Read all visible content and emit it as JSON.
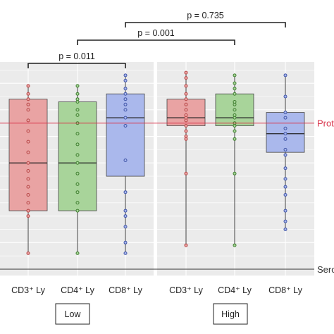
{
  "chart_data": {
    "type": "box",
    "panels": [
      {
        "group": "Low",
        "series": [
          {
            "name": "CD3⁺ Ly",
            "color": "#e9a3a3",
            "edge": "#c05050",
            "dot": "#b84747",
            "min": 0.06,
            "q1": 0.22,
            "median": 0.4,
            "q3": 0.64,
            "max": 0.69,
            "points": [
              0.06,
              0.2,
              0.22,
              0.22,
              0.25,
              0.28,
              0.31,
              0.34,
              0.37,
              0.4,
              0.44,
              0.48,
              0.52,
              0.56,
              0.6,
              0.62,
              0.64,
              0.66,
              0.69
            ]
          },
          {
            "name": "CD4⁺ Ly",
            "color": "#a8d49a",
            "edge": "#4c8a3c",
            "dot": "#3f7f2f",
            "min": 0.06,
            "q1": 0.22,
            "median": 0.4,
            "q3": 0.63,
            "max": 0.69,
            "points": [
              0.06,
              0.22,
              0.25,
              0.29,
              0.32,
              0.36,
              0.4,
              0.43,
              0.47,
              0.51,
              0.55,
              0.58,
              0.6,
              0.63,
              0.64,
              0.66,
              0.69
            ]
          },
          {
            "name": "CD8⁺ Ly",
            "color": "#aab8ec",
            "edge": "#5468b8",
            "dot": "#4055a8",
            "min": 0.06,
            "q1": 0.35,
            "median": 0.57,
            "q3": 0.66,
            "max": 0.73,
            "points": [
              0.06,
              0.1,
              0.16,
              0.2,
              0.22,
              0.29,
              0.41,
              0.54,
              0.57,
              0.6,
              0.62,
              0.64,
              0.66,
              0.68,
              0.71,
              0.73
            ]
          }
        ]
      },
      {
        "group": "High",
        "series": [
          {
            "name": "CD3⁺ Ly",
            "color": "#e9a3a3",
            "edge": "#c05050",
            "dot": "#b84747",
            "min": 0.09,
            "q1": 0.54,
            "median": 0.57,
            "q3": 0.64,
            "max": 0.74,
            "points": [
              0.09,
              0.36,
              0.49,
              0.5,
              0.52,
              0.54,
              0.56,
              0.57,
              0.58,
              0.6,
              0.62,
              0.64,
              0.66,
              0.69,
              0.72,
              0.74
            ]
          },
          {
            "name": "CD4⁺ Ly",
            "color": "#a8d49a",
            "edge": "#4c8a3c",
            "dot": "#3f7f2f",
            "min": 0.09,
            "q1": 0.54,
            "median": 0.57,
            "q3": 0.66,
            "max": 0.73,
            "points": [
              0.09,
              0.36,
              0.49,
              0.52,
              0.54,
              0.55,
              0.57,
              0.58,
              0.6,
              0.62,
              0.63,
              0.66,
              0.68,
              0.7,
              0.73
            ]
          },
          {
            "name": "CD8⁺ Ly",
            "color": "#aab8ec",
            "edge": "#5468b8",
            "dot": "#4055a8",
            "min": 0.15,
            "q1": 0.44,
            "median": 0.51,
            "q3": 0.59,
            "max": 0.73,
            "points": [
              0.15,
              0.18,
              0.22,
              0.28,
              0.31,
              0.34,
              0.38,
              0.43,
              0.45,
              0.49,
              0.51,
              0.53,
              0.57,
              0.59,
              0.65,
              0.73
            ]
          }
        ]
      }
    ],
    "ylim": [
      0,
      0.78
    ],
    "reference_lines": [
      {
        "label": "Prote",
        "value": 0.55,
        "color": "#d9364d"
      },
      {
        "label": "Sero",
        "value": 0.0,
        "color": "#333333"
      }
    ],
    "comparisons": [
      {
        "label": "p = 0.011",
        "from": [
          0,
          0
        ],
        "to": [
          0,
          2
        ]
      },
      {
        "label": "p = 0.001",
        "from": [
          0,
          1
        ],
        "to": [
          1,
          1
        ]
      },
      {
        "label": "p = 0.735",
        "from": [
          0,
          2
        ],
        "to": [
          1,
          2
        ]
      }
    ],
    "grid": true,
    "background": "#ebebeb"
  }
}
